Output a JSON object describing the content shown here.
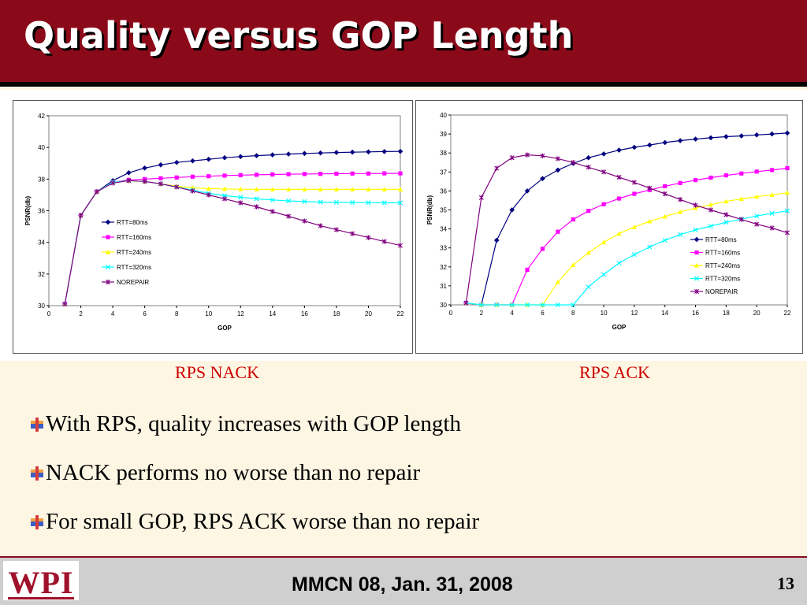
{
  "slide": {
    "title": "Quality versus GOP Length",
    "footer": "MMCN 08, Jan. 31, 2008",
    "page_number": "13",
    "logo_text": "WPI"
  },
  "captions": {
    "left": "RPS NACK",
    "right": "RPS ACK"
  },
  "bullets": [
    "With RPS, quality increases with GOP length",
    "NACK performs no worse than no repair",
    "For small GOP, RPS ACK worse than no repair"
  ],
  "colors": {
    "title_bg": "#8b0a1a",
    "caption": "#cc0000",
    "series": [
      "#000080",
      "#ff00ff",
      "#ffff00",
      "#00ffff",
      "#800080"
    ]
  },
  "chart_data": [
    {
      "type": "line",
      "caption": "RPS NACK",
      "xlabel": "GOP",
      "ylabel": "PSNR(db)",
      "xlim": [
        0,
        22
      ],
      "ylim": [
        30,
        42
      ],
      "xticks": [
        0,
        2,
        4,
        6,
        8,
        10,
        12,
        14,
        16,
        18,
        20,
        22
      ],
      "yticks": [
        30,
        32,
        34,
        36,
        38,
        40,
        42
      ],
      "legend_position": "middle-left",
      "x": [
        1,
        2,
        3,
        4,
        5,
        6,
        7,
        8,
        9,
        10,
        11,
        12,
        13,
        14,
        15,
        16,
        17,
        18,
        19,
        20,
        21,
        22
      ],
      "series": [
        {
          "name": "RTT=80ms",
          "marker": "diamond",
          "values": [
            30.1,
            35.7,
            37.2,
            37.9,
            38.4,
            38.7,
            38.9,
            39.05,
            39.15,
            39.25,
            39.35,
            39.42,
            39.48,
            39.53,
            39.58,
            39.62,
            39.65,
            39.68,
            39.7,
            39.72,
            39.74,
            39.75
          ]
        },
        {
          "name": "RTT=160ms",
          "marker": "square",
          "values": [
            30.1,
            35.7,
            37.2,
            37.8,
            37.95,
            38.0,
            38.05,
            38.1,
            38.15,
            38.18,
            38.22,
            38.25,
            38.27,
            38.29,
            38.31,
            38.32,
            38.33,
            38.34,
            38.35,
            38.35,
            38.36,
            38.36
          ]
        },
        {
          "name": "RTT=240ms",
          "marker": "triangle",
          "values": [
            30.1,
            35.7,
            37.2,
            37.8,
            37.9,
            37.85,
            37.7,
            37.55,
            37.45,
            37.4,
            37.38,
            37.36,
            37.35,
            37.35,
            37.35,
            37.35,
            37.35,
            37.35,
            37.35,
            37.35,
            37.35,
            37.35
          ]
        },
        {
          "name": "RTT=320ms",
          "marker": "x",
          "values": [
            30.1,
            35.7,
            37.2,
            37.8,
            37.9,
            37.85,
            37.7,
            37.5,
            37.3,
            37.1,
            36.95,
            36.85,
            36.75,
            36.68,
            36.62,
            36.58,
            36.55,
            36.53,
            36.52,
            36.51,
            36.5,
            36.5
          ]
        },
        {
          "name": "NOREPAIR",
          "marker": "star",
          "values": [
            30.1,
            35.7,
            37.2,
            37.75,
            37.9,
            37.85,
            37.7,
            37.5,
            37.25,
            37.0,
            36.75,
            36.5,
            36.25,
            35.95,
            35.65,
            35.35,
            35.05,
            34.8,
            34.55,
            34.3,
            34.05,
            33.8
          ]
        }
      ]
    },
    {
      "type": "line",
      "caption": "RPS ACK",
      "xlabel": "GOP",
      "ylabel": "PSNR(db)",
      "xlim": [
        0,
        22
      ],
      "ylim": [
        30,
        40
      ],
      "xticks": [
        0,
        2,
        4,
        6,
        8,
        10,
        12,
        14,
        16,
        18,
        20,
        22
      ],
      "yticks": [
        30,
        31,
        32,
        33,
        34,
        35,
        36,
        37,
        38,
        39,
        40
      ],
      "legend_position": "bottom-right",
      "x": [
        1,
        2,
        3,
        4,
        5,
        6,
        7,
        8,
        9,
        10,
        11,
        12,
        13,
        14,
        15,
        16,
        17,
        18,
        19,
        20,
        21,
        22
      ],
      "series": [
        {
          "name": "RTT=80ms",
          "marker": "diamond",
          "values": [
            30.1,
            30.0,
            33.4,
            35.0,
            36.0,
            36.65,
            37.1,
            37.45,
            37.75,
            37.95,
            38.15,
            38.3,
            38.42,
            38.55,
            38.65,
            38.73,
            38.8,
            38.86,
            38.9,
            38.95,
            39.0,
            39.05
          ]
        },
        {
          "name": "RTT=160ms",
          "marker": "square",
          "values": [
            30.1,
            30.0,
            30.0,
            30.0,
            31.85,
            32.95,
            33.85,
            34.5,
            34.95,
            35.3,
            35.6,
            35.85,
            36.05,
            36.25,
            36.42,
            36.57,
            36.7,
            36.82,
            36.92,
            37.02,
            37.1,
            37.2
          ]
        },
        {
          "name": "RTT=240ms",
          "marker": "triangle",
          "values": [
            30.1,
            30.0,
            30.0,
            30.0,
            30.0,
            30.0,
            31.2,
            32.1,
            32.75,
            33.3,
            33.75,
            34.1,
            34.4,
            34.65,
            34.9,
            35.1,
            35.28,
            35.45,
            35.58,
            35.7,
            35.8,
            35.9
          ]
        },
        {
          "name": "RTT=320ms",
          "marker": "x",
          "values": [
            30.1,
            30.0,
            30.0,
            30.0,
            30.0,
            30.0,
            30.0,
            30.0,
            30.95,
            31.6,
            32.2,
            32.65,
            33.05,
            33.4,
            33.7,
            33.95,
            34.15,
            34.35,
            34.52,
            34.68,
            34.82,
            34.95
          ]
        },
        {
          "name": "NOREPAIR",
          "marker": "star",
          "values": [
            30.1,
            35.65,
            37.2,
            37.75,
            37.9,
            37.85,
            37.7,
            37.5,
            37.25,
            37.0,
            36.72,
            36.45,
            36.15,
            35.85,
            35.55,
            35.25,
            35.0,
            34.75,
            34.5,
            34.25,
            34.05,
            33.8
          ]
        }
      ]
    }
  ]
}
